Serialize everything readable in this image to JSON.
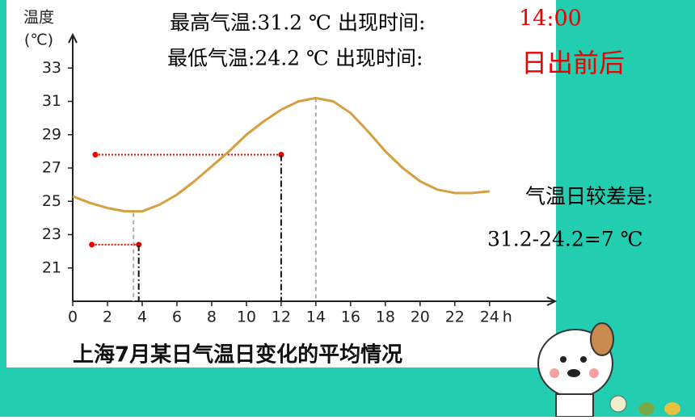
{
  "chart_data": {
    "type": "line",
    "y_label": [
      "温度",
      "(℃)"
    ],
    "x_label": "h",
    "caption": "上海7月某日气温日变化的平均情况",
    "x": [
      0,
      1,
      2,
      3,
      4,
      5,
      6,
      7,
      8,
      9,
      10,
      11,
      12,
      13,
      14,
      15,
      16,
      17,
      18,
      19,
      20,
      21,
      22,
      23,
      24
    ],
    "series": [
      {
        "color": "#d4a040",
        "values": [
          25.3,
          24.9,
          24.6,
          24.4,
          24.4,
          24.8,
          25.4,
          26.2,
          27.1,
          28.0,
          29.0,
          29.8,
          30.5,
          31.0,
          31.2,
          31.0,
          30.3,
          29.2,
          28.0,
          27.0,
          26.2,
          25.7,
          25.5,
          25.5,
          25.6
        ]
      }
    ],
    "xlim": [
      0,
      27.5
    ],
    "ylim": [
      19,
      35
    ],
    "xticks": [
      0,
      2,
      4,
      6,
      8,
      10,
      12,
      14,
      16,
      18,
      20,
      22,
      24
    ],
    "yticks": [
      21,
      23,
      25,
      27,
      29,
      31,
      33
    ],
    "min_guide": {
      "x": 3.5,
      "y": 24.3
    },
    "max_guide": {
      "x": 14,
      "y": 31.2
    },
    "markers": [
      {
        "x0": 1.3,
        "x": 12,
        "y": 27.8
      },
      {
        "x0": 1.1,
        "x": 3.8,
        "y": 22.4
      }
    ]
  },
  "slide": {
    "max_line": "最高气温:31.2 ℃ 出现时间:",
    "max_time": "14:00",
    "min_line": "最低气温:24.2 ℃ 出现时间:",
    "min_time": "日出前后",
    "range_label": "气温日较差是:",
    "range_calc": "31.2-24.2=7 ℃"
  }
}
